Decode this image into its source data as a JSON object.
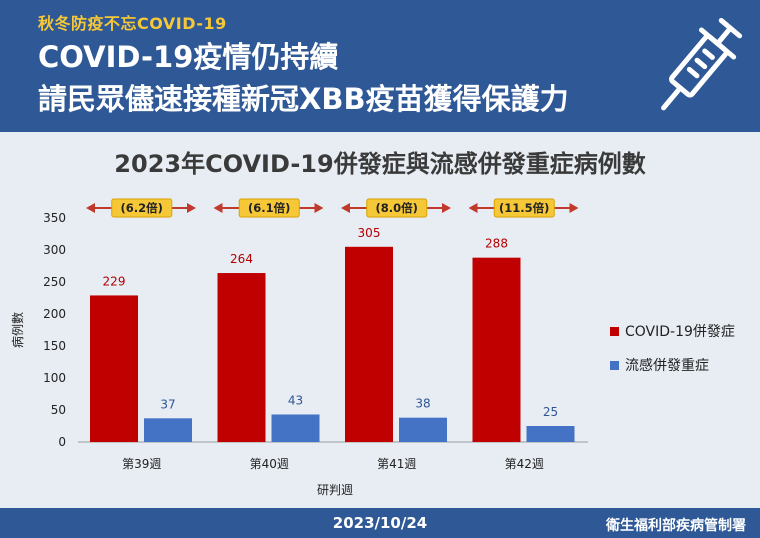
{
  "header": {
    "tag": "秋冬防疫不忘COVID-19",
    "line1": "COVID-19疫情仍持續",
    "line2": "請民眾儘速接種新冠XBB疫苗獲得保護力",
    "icon": "syringe-icon"
  },
  "footer": {
    "date": "2023/10/24",
    "org": "衛生福利部疾病管制署"
  },
  "colors": {
    "header_bg": "#2e5896",
    "covid": "#c00000",
    "flu": "#4472c4",
    "ratio_badge": "#f6c737"
  },
  "chart_data": {
    "type": "bar",
    "title": "2023年COVID-19併發症與流感併發重症病例數",
    "xlabel": "研判週",
    "ylabel": "病例數",
    "ylim": [
      0,
      350
    ],
    "yticks": [
      0,
      50,
      100,
      150,
      200,
      250,
      300,
      350
    ],
    "grid": false,
    "legend_position": "right",
    "categories": [
      "第39週",
      "第40週",
      "第41週",
      "第42週"
    ],
    "series": [
      {
        "name": "COVID-19併發症",
        "values": [
          229,
          264,
          305,
          288
        ]
      },
      {
        "name": "流感併發重症",
        "values": [
          37,
          43,
          38,
          25
        ]
      }
    ],
    "annotations": [
      "(6.2倍)",
      "(6.1倍)",
      "(8.0倍)",
      "(11.5倍)"
    ]
  }
}
